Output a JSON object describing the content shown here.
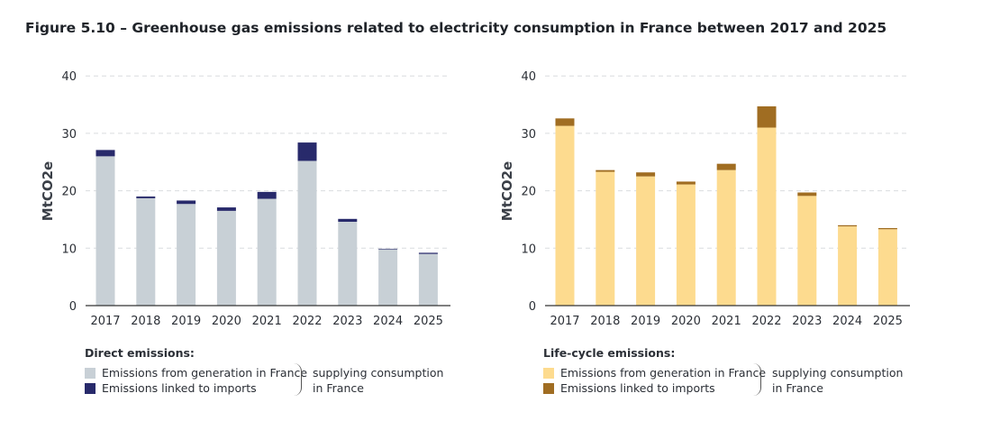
{
  "title": "Figure 5.10 – Greenhouse gas emissions related to electricity consumption in France between 2017 and 2025",
  "chart_data": [
    {
      "type": "bar",
      "stacked": true,
      "ylabel": "MtCO2e",
      "ylim": [
        0,
        40
      ],
      "yticks": [
        0,
        10,
        20,
        30,
        40
      ],
      "grid": true,
      "categories": [
        "2017",
        "2018",
        "2019",
        "2020",
        "2021",
        "2022",
        "2023",
        "2024",
        "2025"
      ],
      "legend_title": "Direct emissions:",
      "series": [
        {
          "name": "Emissions from generation in France",
          "color": "#c8d0d6",
          "values": [
            26.0,
            18.7,
            17.7,
            16.5,
            18.6,
            25.2,
            14.6,
            9.8,
            9.0
          ]
        },
        {
          "name": "Emissions linked to imports",
          "color": "#282a6b",
          "values": [
            1.1,
            0.3,
            0.6,
            0.6,
            1.2,
            3.2,
            0.5,
            0.1,
            0.2
          ]
        }
      ],
      "note": [
        "supplying consumption",
        "in France"
      ]
    },
    {
      "type": "bar",
      "stacked": true,
      "ylabel": "MtCO2e",
      "ylim": [
        0,
        40
      ],
      "yticks": [
        0,
        10,
        20,
        30,
        40
      ],
      "grid": true,
      "categories": [
        "2017",
        "2018",
        "2019",
        "2020",
        "2021",
        "2022",
        "2023",
        "2024",
        "2025"
      ],
      "legend_title": "Life-cycle emissions:",
      "series": [
        {
          "name": "Emissions from generation in France",
          "color": "#fddb8f",
          "values": [
            31.3,
            23.3,
            22.5,
            21.1,
            23.6,
            31.0,
            19.1,
            13.8,
            13.3
          ]
        },
        {
          "name": "Emissions linked to imports",
          "color": "#a06d22",
          "values": [
            1.3,
            0.3,
            0.7,
            0.5,
            1.1,
            3.7,
            0.6,
            0.2,
            0.2
          ]
        }
      ],
      "note": [
        "supplying consumption",
        "in France"
      ]
    }
  ]
}
